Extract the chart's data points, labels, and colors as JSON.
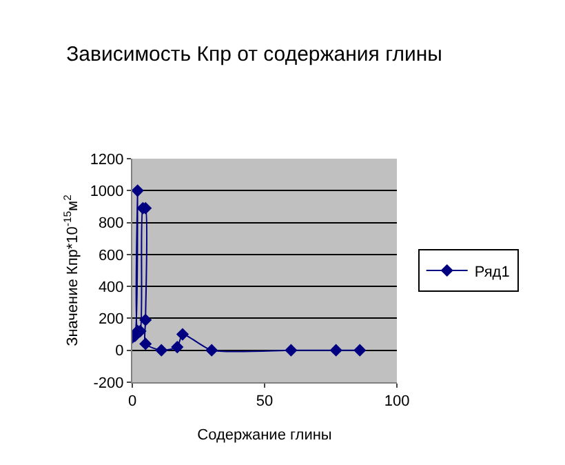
{
  "chart_data": {
    "type": "line",
    "title": "Зависимость Кпр от содержания глины",
    "xlabel": "Содержание глины",
    "ylabel": "Значение Кпр*10$^{-15}$м$^{2}$",
    "x": [
      0,
      1,
      2,
      2,
      3,
      4,
      5,
      5,
      5,
      11,
      17,
      19,
      30,
      60,
      77,
      86
    ],
    "series": [
      {
        "name": "Ряд1",
        "color": "#000080",
        "values": [
          80,
          90,
          1000,
          120,
          120,
          890,
          890,
          190,
          40,
          0,
          20,
          100,
          0,
          0,
          0,
          0
        ]
      }
    ],
    "xlim": [
      0,
      100
    ],
    "xticks": [
      0,
      50,
      100
    ],
    "ylim": [
      -200,
      1200
    ],
    "yticks": [
      -200,
      0,
      200,
      400,
      600,
      800,
      1000,
      1200
    ],
    "grid": "y",
    "legend": "right",
    "marker": "diamond",
    "line_style": "solid"
  }
}
